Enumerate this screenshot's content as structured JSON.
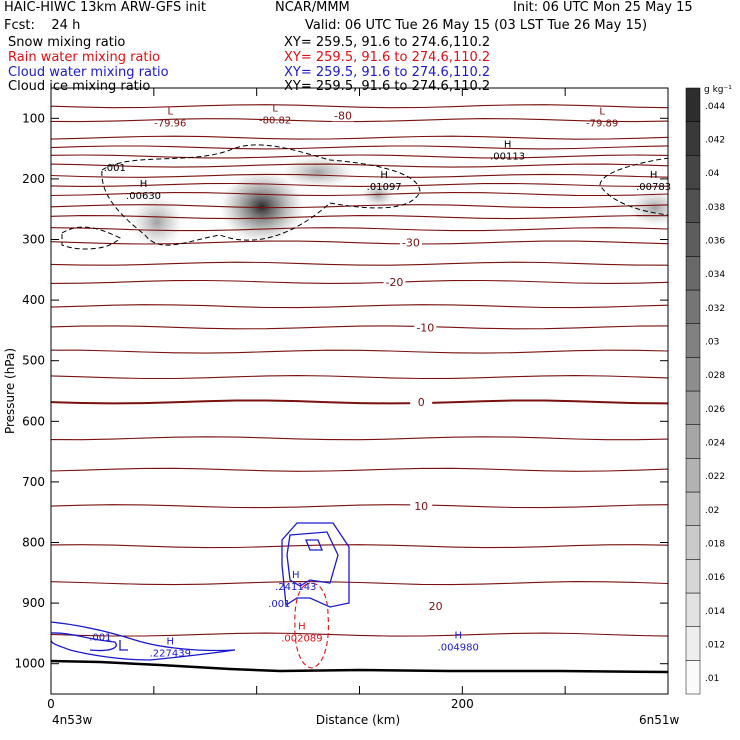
{
  "header": {
    "title": "HAIC-HIWC 13km ARW-GFS init",
    "org": "NCAR/MMM",
    "init": "Init: 06 UTC Mon 25 May 15",
    "fcst": "Fcst:    24 h",
    "valid": "Valid: 06 UTC Tue 26 May 15 (03 LST Tue 26 May 15)",
    "fields": [
      {
        "name": "Snow mixing ratio",
        "xy": "XY= 259.5, 91.6 to 274.6,110.2",
        "color": "#000000"
      },
      {
        "name": "Rain water mixing ratio",
        "xy": "XY= 259.5, 91.6 to 274.6,110.2",
        "color": "#dd1111"
      },
      {
        "name": "Cloud water mixing ratio",
        "xy": "XY= 259.5, 91.6 to 274.6,110.2",
        "color": "#1a1acc"
      },
      {
        "name": "Cloud ice mixing ratio",
        "xy": "XY= 259.5, 91.6 to 274.6,110.2",
        "color": "#000000"
      }
    ]
  },
  "colors": {
    "temperature": "#7a1010",
    "cloud_water": "#1a1acc",
    "rain": "#dd1111",
    "snow_shade": "#2a2a2a"
  },
  "chart_data": {
    "type": "contour",
    "xlabel": "Distance (km)",
    "ylabel": "Pressure (hPa)",
    "xlim": [
      0,
      300
    ],
    "ylim": [
      1050,
      50
    ],
    "x_ticks": [
      0,
      200
    ],
    "y_ticks": [
      100,
      200,
      300,
      400,
      500,
      600,
      700,
      800,
      900,
      1000
    ],
    "x_end_labels": {
      "left": "4n53w",
      "right": "6n51w"
    },
    "temperature_lines": [
      {
        "p": 80
      },
      {
        "p": 103
      },
      {
        "p": 132
      },
      {
        "p": 148
      },
      {
        "p": 163
      },
      {
        "p": 178
      },
      {
        "p": 195
      },
      {
        "p": 210
      },
      {
        "p": 225
      },
      {
        "p": 245
      },
      {
        "p": 263
      },
      {
        "p": 283
      },
      {
        "p": 305
      },
      {
        "p": 340
      },
      {
        "p": 370
      },
      {
        "p": 410
      },
      {
        "p": 445
      },
      {
        "p": 485
      },
      {
        "p": 527
      },
      {
        "p": 568
      },
      {
        "p": 628
      },
      {
        "p": 680
      },
      {
        "p": 740
      },
      {
        "p": 806
      },
      {
        "p": 867
      },
      {
        "p": 952
      }
    ],
    "temperature_labels": [
      {
        "text": "-80",
        "x": 142,
        "p": 95
      },
      {
        "text": "-30",
        "x": 175,
        "p": 305
      },
      {
        "text": "-20",
        "x": 167,
        "p": 370
      },
      {
        "text": "-10",
        "x": 182,
        "p": 445
      },
      {
        "text": "0",
        "x": 180,
        "p": 568
      },
      {
        "text": "10",
        "x": 180,
        "p": 740
      },
      {
        "text": "20",
        "x": 187,
        "p": 905
      }
    ],
    "extrema": [
      {
        "kind": "L",
        "value": "-79.96",
        "x": 58,
        "p": 100,
        "field": "temperature"
      },
      {
        "kind": "L",
        "value": "-80.82",
        "x": 109,
        "p": 95,
        "field": "temperature"
      },
      {
        "kind": "L",
        "value": "-79.89",
        "x": 268,
        "p": 100,
        "field": "temperature"
      },
      {
        "kind": "H",
        "value": ".00113",
        "x": 222,
        "p": 155,
        "field": "snow"
      },
      {
        "kind": "H",
        "value": ".01097",
        "x": 162,
        "p": 205,
        "field": "snow"
      },
      {
        "kind": "H",
        "value": ".00630",
        "x": 45,
        "p": 220,
        "field": "snow"
      },
      {
        "kind": "H",
        "value": ".00783",
        "x": 293,
        "p": 205,
        "field": "snow"
      },
      {
        "kind": "H",
        "value": ".241143",
        "x": 119,
        "p": 865,
        "field": "cloud_water"
      },
      {
        "kind": "H",
        "value": ".227439",
        "x": 58,
        "p": 975,
        "field": "cloud_water"
      },
      {
        "kind": "H",
        "value": ".004980",
        "x": 198,
        "p": 965,
        "field": "cloud_water"
      },
      {
        "kind": "H",
        "value": ".002089",
        "x": 122,
        "p": 950,
        "field": "rain"
      }
    ],
    "contour_labels": [
      {
        "text": ".001",
        "x": 31,
        "p": 180,
        "field": "snow"
      },
      {
        "text": ".001",
        "x": 111,
        "p": 900,
        "field": "cloud_water"
      },
      {
        "text": ".001",
        "x": 24,
        "p": 955,
        "field": "cloud_water"
      }
    ],
    "colorbar": {
      "unit": "g kg⁻¹",
      "levels": [
        ".01",
        ".012",
        ".014",
        ".016",
        ".018",
        ".02",
        ".022",
        ".024",
        ".026",
        ".028",
        ".03",
        ".032",
        ".034",
        ".036",
        ".038",
        ".04",
        ".042",
        ".044"
      ]
    }
  }
}
